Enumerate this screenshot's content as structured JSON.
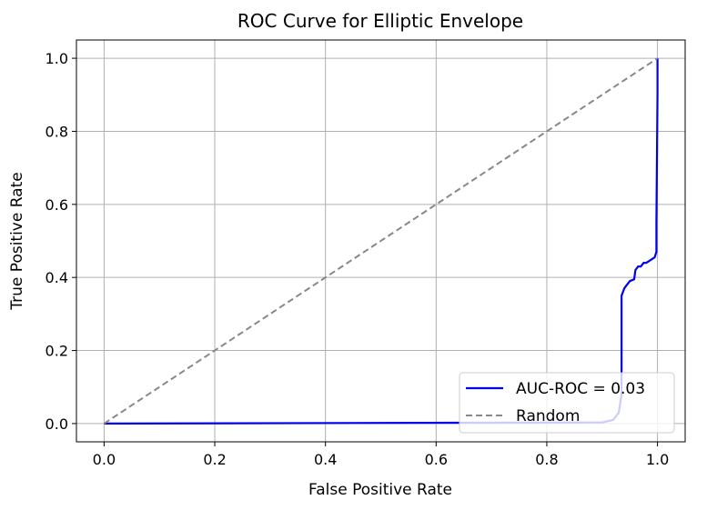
{
  "chart_data": {
    "type": "line",
    "title": "ROC Curve for Elliptic Envelope",
    "xlabel": "False Positive Rate",
    "ylabel": "True Positive Rate",
    "xlim": [
      -0.05,
      1.05
    ],
    "ylim": [
      -0.05,
      1.05
    ],
    "xticks": [
      "0.0",
      "0.2",
      "0.4",
      "0.6",
      "0.8",
      "1.0"
    ],
    "yticks": [
      "0.0",
      "0.2",
      "0.4",
      "0.6",
      "0.8",
      "1.0"
    ],
    "grid": true,
    "legend_position": "lower right",
    "series": [
      {
        "name": "AUC-ROC = 0.03",
        "color": "#0000ee",
        "style": "solid",
        "x": [
          0.0,
          0.9,
          0.92,
          0.93,
          0.935,
          0.935,
          0.94,
          0.945,
          0.95,
          0.958,
          0.96,
          0.965,
          0.97,
          0.975,
          0.98,
          0.99,
          0.995,
          0.998,
          0.998,
          1.0,
          1.0
        ],
        "y": [
          0.0,
          0.003,
          0.01,
          0.03,
          0.08,
          0.35,
          0.37,
          0.38,
          0.39,
          0.395,
          0.42,
          0.43,
          0.43,
          0.44,
          0.44,
          0.45,
          0.455,
          0.47,
          0.55,
          0.9,
          1.0
        ]
      },
      {
        "name": "Random",
        "color": "#888888",
        "style": "dashed",
        "x": [
          0.0,
          1.0
        ],
        "y": [
          0.0,
          1.0
        ]
      }
    ]
  }
}
